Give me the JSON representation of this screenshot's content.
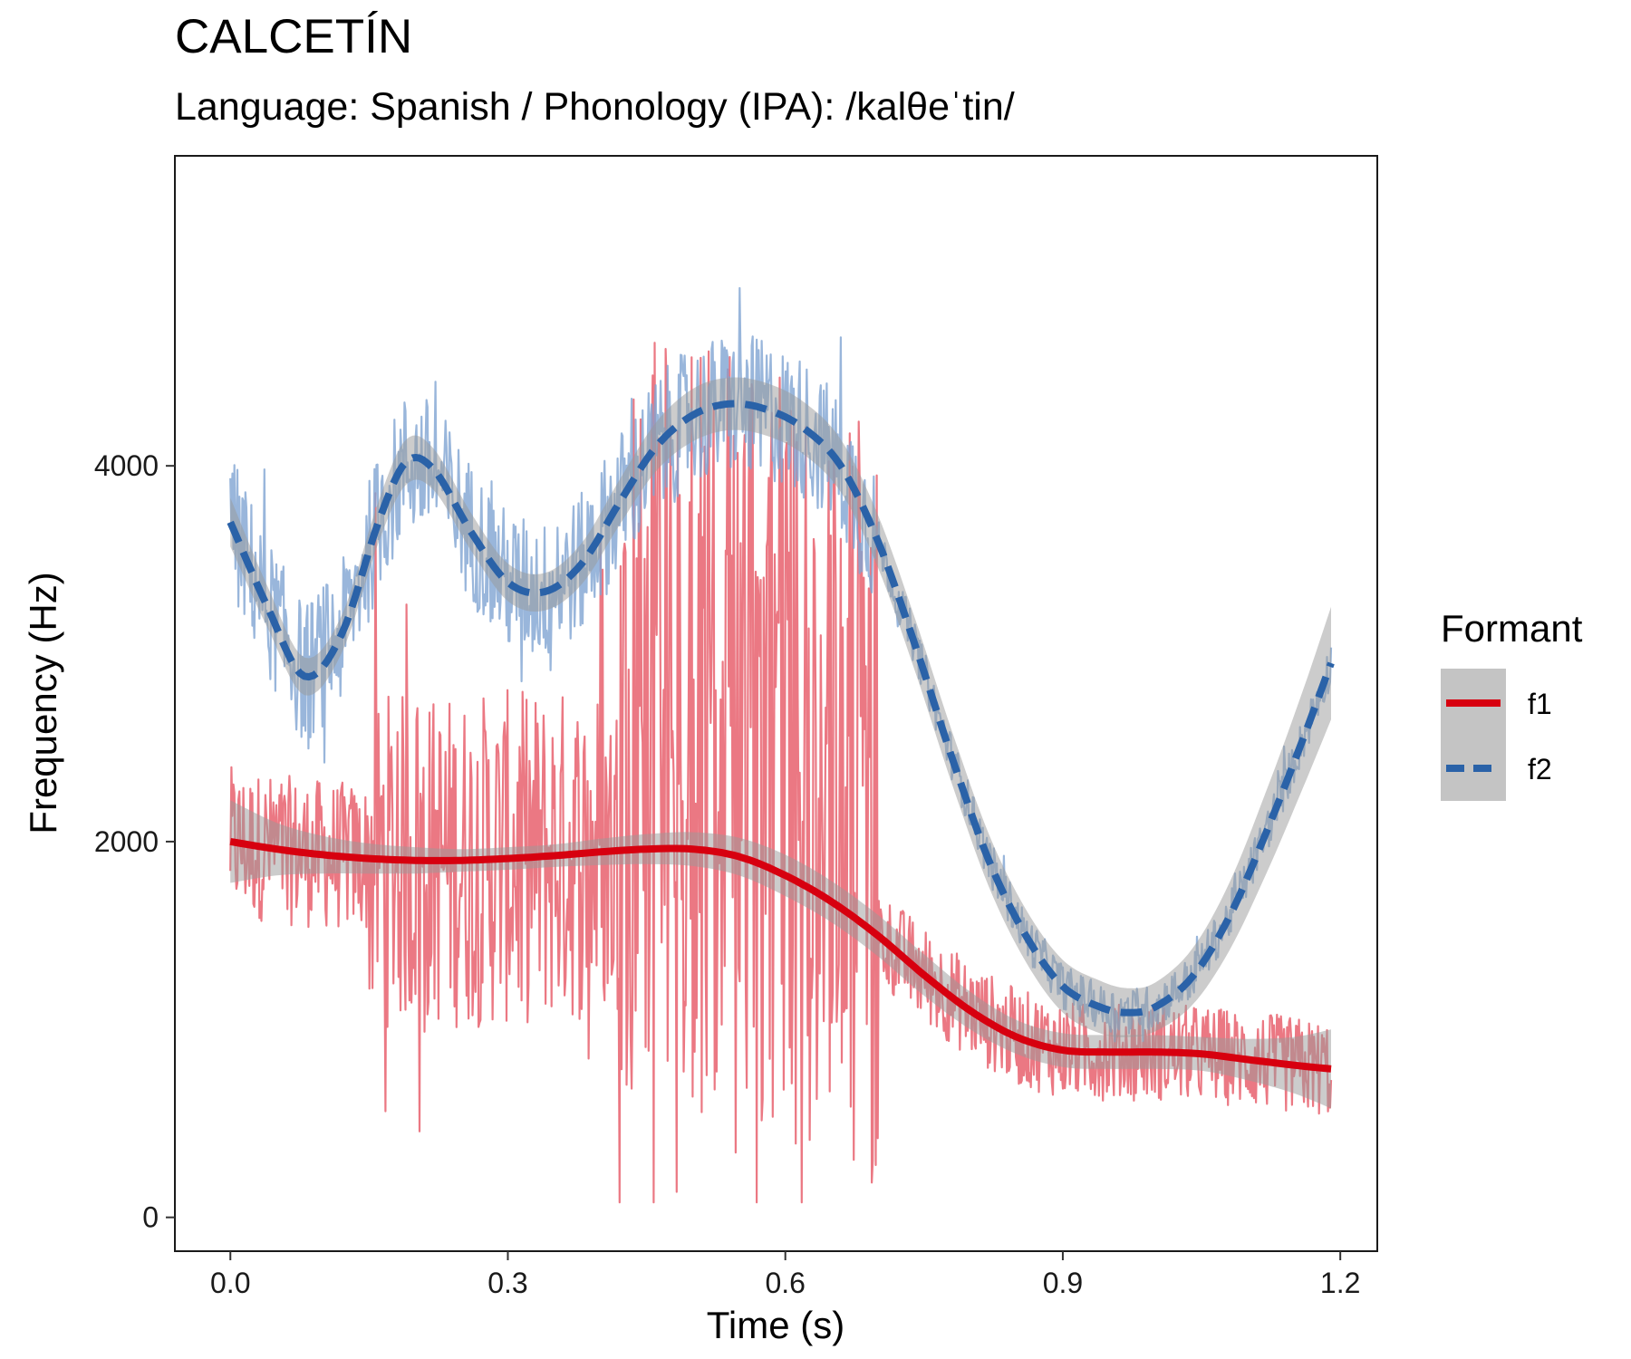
{
  "chart_data": {
    "type": "line",
    "title": "CALCETÍN",
    "subtitle": "Language: Spanish / Phonology (IPA): /kalθeˈtin/",
    "xlabel": "Time (s)",
    "ylabel": "Frequency (Hz)",
    "xlim": [
      -0.06,
      1.24
    ],
    "ylim": [
      -180,
      5650
    ],
    "x_ticks": [
      0.0,
      0.3,
      0.6,
      0.9,
      1.2
    ],
    "x_tick_labels": [
      "0.0",
      "0.3",
      "0.6",
      "0.9",
      "1.2"
    ],
    "y_ticks": [
      0,
      2000,
      4000
    ],
    "y_tick_labels": [
      "0",
      "2000",
      "4000"
    ],
    "grid": false,
    "legend": {
      "title": "Formant",
      "position": "right"
    },
    "series": [
      {
        "name": "f1",
        "color": "#d7000f",
        "raw_color": "#e8606d",
        "line_style": "solid",
        "raw_range": [
          0.0,
          1.19
        ],
        "raw_active_range": [
          0.0,
          1.19
        ],
        "smooth": {
          "x": [
            0.0,
            0.05,
            0.1,
            0.15,
            0.2,
            0.25,
            0.3,
            0.35,
            0.4,
            0.45,
            0.5,
            0.55,
            0.6,
            0.65,
            0.7,
            0.75,
            0.8,
            0.85,
            0.9,
            0.95,
            1.0,
            1.05,
            1.1,
            1.15,
            1.19
          ],
          "y": [
            2000,
            1960,
            1930,
            1910,
            1900,
            1900,
            1910,
            1925,
            1945,
            1960,
            1960,
            1920,
            1820,
            1680,
            1500,
            1290,
            1100,
            960,
            890,
            880,
            880,
            870,
            840,
            810,
            790
          ],
          "band": [
            220,
            140,
            100,
            80,
            70,
            60,
            60,
            60,
            70,
            80,
            90,
            100,
            110,
            110,
            110,
            110,
            100,
            90,
            90,
            90,
            90,
            90,
            110,
            150,
            210
          ]
        }
      },
      {
        "name": "f2",
        "color": "#2a62a8",
        "raw_color": "#7fa4d2",
        "line_style": "dashed",
        "raw_range": [
          0.0,
          1.19
        ],
        "raw_active_range": [
          0.0,
          0.7
        ],
        "smooth": {
          "x": [
            0.0,
            0.04,
            0.08,
            0.12,
            0.16,
            0.19,
            0.22,
            0.26,
            0.3,
            0.34,
            0.38,
            0.42,
            0.46,
            0.5,
            0.54,
            0.58,
            0.62,
            0.66,
            0.7,
            0.74,
            0.78,
            0.82,
            0.86,
            0.9,
            0.94,
            0.97,
            1.0,
            1.04,
            1.08,
            1.12,
            1.16,
            1.19
          ],
          "y": [
            3700,
            3250,
            2880,
            3100,
            3700,
            4020,
            3980,
            3650,
            3380,
            3330,
            3480,
            3800,
            4100,
            4270,
            4330,
            4300,
            4200,
            4000,
            3600,
            3050,
            2450,
            1900,
            1500,
            1230,
            1120,
            1090,
            1120,
            1280,
            1600,
            2050,
            2550,
            2950
          ],
          "band": [
            130,
            110,
            100,
            100,
            110,
            120,
            110,
            100,
            100,
            100,
            110,
            120,
            130,
            140,
            140,
            140,
            140,
            140,
            140,
            140,
            140,
            140,
            140,
            140,
            140,
            130,
            130,
            150,
            180,
            220,
            260,
            300
          ]
        }
      }
    ]
  }
}
